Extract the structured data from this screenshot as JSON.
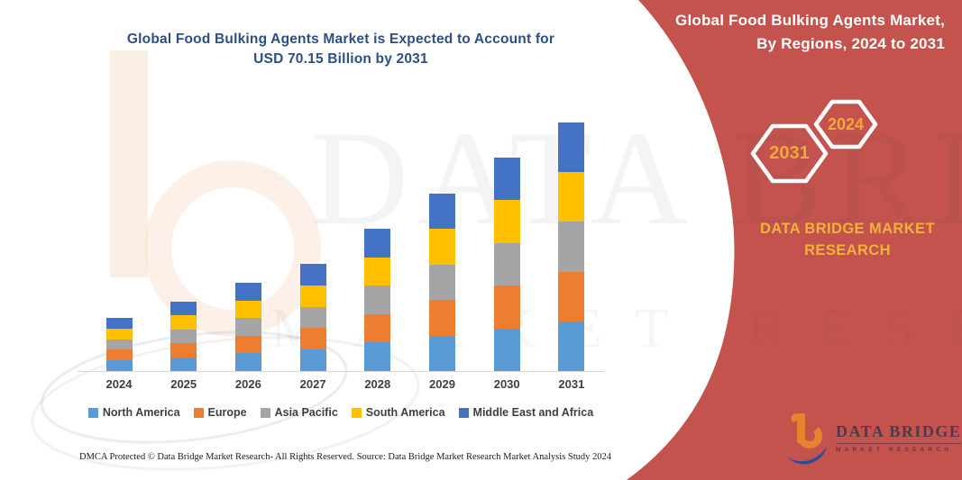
{
  "title": {
    "line1": "Global Food Bulking Agents Market is Expected to Account for",
    "line2": "USD 70.15 Billion by 2031"
  },
  "side_panel": {
    "heading_line1": "Global Food Bulking Agents Market,",
    "heading_line2": "By Regions, 2024 to 2031",
    "hexagon_left_year": "2031",
    "hexagon_right_year": "2024",
    "brand_line1": "DATA BRIDGE MARKET",
    "brand_line2": "RESEARCH",
    "panel_color": "#C4534E",
    "accent_text_color": "#F0A73C"
  },
  "watermark": {
    "line1": "DATA BRIDGE",
    "line2": "MARKET RESEARCH"
  },
  "logo": {
    "name_line": "DATA BRIDGE",
    "sub_line": "MARKET RESEARCH"
  },
  "footer": {
    "left": "DMCA Protected © Data Bridge Market Research-  All Rights Reserved.",
    "source": "Source: Data Bridge Market Research  Market Analysis Study 2024"
  },
  "chart_data": {
    "type": "bar",
    "stacked": true,
    "title": "Global Food Bulking Agents Market is Expected to Account for USD 70.15 Billion by 2031",
    "unit": "USD Billion",
    "categories": [
      "2024",
      "2025",
      "2026",
      "2027",
      "2028",
      "2029",
      "2030",
      "2031"
    ],
    "series": [
      {
        "name": "North America",
        "color": "#5B9BD5",
        "values": [
          3.0,
          3.92,
          4.98,
          6.04,
          8.04,
          10.02,
          12.04,
          14.03
        ]
      },
      {
        "name": "Europe",
        "color": "#ED7D31",
        "values": [
          3.0,
          3.92,
          4.98,
          6.04,
          8.04,
          10.02,
          12.04,
          14.03
        ]
      },
      {
        "name": "Asia Pacific",
        "color": "#A5A5A5",
        "values": [
          3.0,
          3.92,
          4.98,
          6.04,
          8.04,
          10.02,
          12.04,
          14.03
        ]
      },
      {
        "name": "South America",
        "color": "#FFC000",
        "values": [
          3.0,
          3.92,
          4.98,
          6.04,
          8.04,
          10.02,
          12.04,
          14.03
        ]
      },
      {
        "name": "Middle East and Africa",
        "color": "#4472C4",
        "values": [
          3.0,
          3.92,
          4.98,
          6.04,
          8.04,
          10.02,
          12.04,
          14.03
        ]
      }
    ],
    "totals": [
      15.0,
      19.6,
      24.9,
      30.2,
      40.2,
      50.1,
      60.2,
      70.15
    ],
    "ylim": [
      0,
      75
    ],
    "grid": false,
    "y_axis_visible": false,
    "legend_position": "bottom"
  }
}
